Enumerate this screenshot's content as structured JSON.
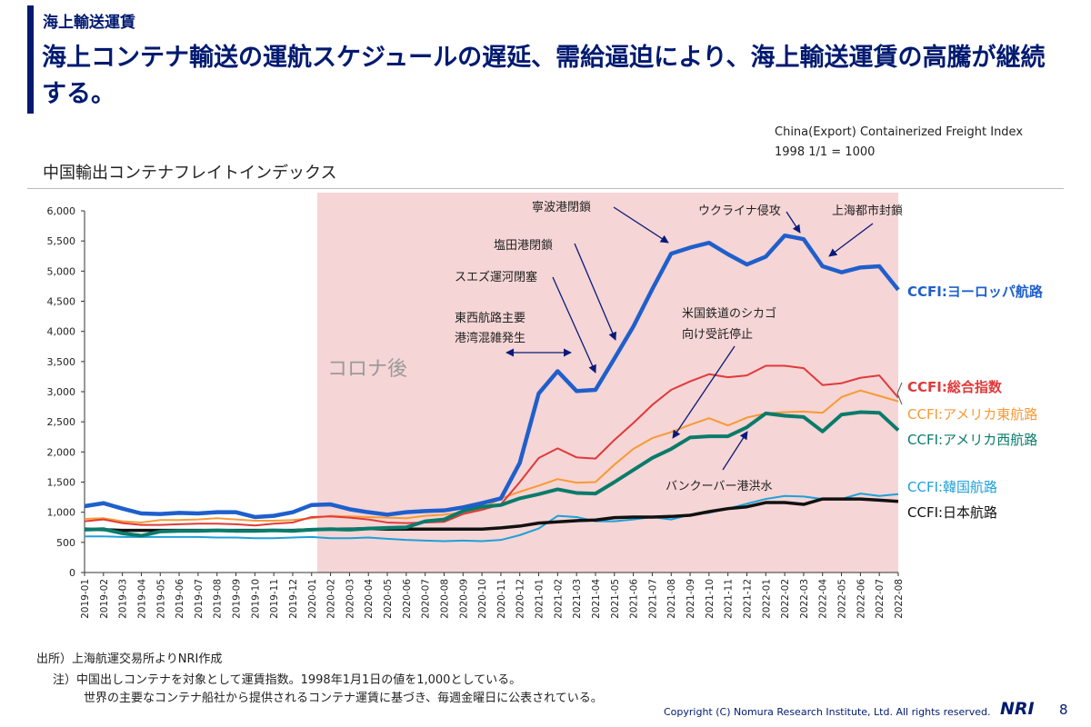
{
  "header": {
    "section": "海上輸送運賃",
    "headline": "海上コンテナ輸送の運航スケジュールの遅延、需給逼迫により、海上輸送運賃の高騰が継続する。",
    "source_line1": "China(Export) Containerized Freight Index",
    "source_line2": "1998 1/1 = 1000"
  },
  "chart_data": {
    "type": "line",
    "title": "中国輸出コンテナフレイトインデックス",
    "xlabel": "",
    "ylabel": "",
    "ylim": [
      0,
      6000
    ],
    "yticks": [
      "0",
      "500",
      "1,000",
      "1,500",
      "2,000",
      "2,500",
      "3,000",
      "3,500",
      "4,000",
      "4,500",
      "5,000",
      "5,500",
      "6,000"
    ],
    "grid": false,
    "legend": "right (inline labels at line ends)",
    "x": [
      "2019-01",
      "2019-02",
      "2019-03",
      "2019-04",
      "2019-05",
      "2019-06",
      "2019-07",
      "2019-08",
      "2019-09",
      "2019-10",
      "2019-11",
      "2019-12",
      "2020-01",
      "2020-02",
      "2020-03",
      "2020-04",
      "2020-05",
      "2020-06",
      "2020-07",
      "2020-08",
      "2020-09",
      "2020-10",
      "2020-11",
      "2020-12",
      "2021-01",
      "2021-02",
      "2021-03",
      "2021-04",
      "2021-05",
      "2021-06",
      "2021-07",
      "2021-08",
      "2021-09",
      "2021-10",
      "2021-11",
      "2021-12",
      "2022-01",
      "2022-02",
      "2022-03",
      "2022-04",
      "2022-05",
      "2022-06",
      "2022-07",
      "2022-08"
    ],
    "shaded_region": {
      "label": "コロナ後",
      "from": "2020-01",
      "to": "2022-08",
      "color": "#f5d5d5"
    },
    "series": [
      {
        "name": "CCFI:ヨーロッパ航路",
        "color": "#1f5fcc",
        "width": 4.5,
        "bold": true,
        "values": [
          1100,
          1150,
          1060,
          980,
          970,
          990,
          980,
          1000,
          1000,
          920,
          940,
          1000,
          1120,
          1130,
          1050,
          1000,
          960,
          1000,
          1020,
          1030,
          1080,
          1150,
          1230,
          1820,
          2970,
          3340,
          3010,
          3030,
          3550,
          4080,
          4700,
          5290,
          5390,
          5470,
          5280,
          5110,
          5240,
          5590,
          5530,
          5080,
          4980,
          5060,
          5080,
          4690
        ]
      },
      {
        "name": "CCFI:総合指数",
        "color": "#e03a3a",
        "width": 2,
        "bold": true,
        "values": [
          850,
          880,
          820,
          790,
          790,
          800,
          810,
          810,
          800,
          780,
          810,
          830,
          920,
          930,
          910,
          880,
          830,
          820,
          830,
          840,
          970,
          1040,
          1130,
          1500,
          1900,
          2060,
          1910,
          1890,
          2200,
          2480,
          2780,
          3030,
          3170,
          3290,
          3240,
          3270,
          3430,
          3430,
          3390,
          3110,
          3140,
          3230,
          3270,
          2900
        ]
      },
      {
        "name": "CCFI:アメリカ東航路",
        "color": "#f79a34",
        "width": 2,
        "bold": false,
        "values": [
          890,
          900,
          850,
          830,
          870,
          870,
          880,
          900,
          880,
          860,
          860,
          870,
          900,
          940,
          930,
          920,
          910,
          900,
          940,
          960,
          1000,
          1060,
          1230,
          1340,
          1440,
          1550,
          1490,
          1500,
          1790,
          2050,
          2230,
          2330,
          2450,
          2560,
          2440,
          2570,
          2640,
          2660,
          2670,
          2650,
          2910,
          3020,
          2930,
          2840
        ]
      },
      {
        "name": "CCFI:アメリカ西航路",
        "color": "#0a7b6b",
        "width": 4,
        "bold": false,
        "values": [
          710,
          720,
          650,
          610,
          680,
          690,
          690,
          700,
          690,
          690,
          700,
          690,
          710,
          720,
          710,
          730,
          740,
          750,
          850,
          880,
          1020,
          1090,
          1120,
          1230,
          1300,
          1380,
          1320,
          1310,
          1500,
          1700,
          1900,
          2050,
          2240,
          2260,
          2260,
          2410,
          2640,
          2600,
          2580,
          2340,
          2620,
          2660,
          2650,
          2360
        ]
      },
      {
        "name": "CCFI:韓国航路",
        "color": "#1ea0d8",
        "width": 2,
        "bold": false,
        "values": [
          600,
          600,
          590,
          590,
          590,
          590,
          590,
          580,
          580,
          570,
          570,
          580,
          590,
          570,
          570,
          580,
          560,
          540,
          530,
          520,
          530,
          520,
          540,
          620,
          730,
          940,
          920,
          850,
          850,
          880,
          920,
          880,
          960,
          990,
          1060,
          1140,
          1220,
          1270,
          1260,
          1220,
          1220,
          1310,
          1270,
          1300
        ]
      },
      {
        "name": "CCFI:日本航路",
        "color": "#111111",
        "width": 3.5,
        "bold": false,
        "values": [
          720,
          710,
          700,
          700,
          700,
          700,
          700,
          700,
          700,
          700,
          700,
          700,
          710,
          720,
          720,
          730,
          720,
          720,
          720,
          720,
          720,
          720,
          740,
          770,
          820,
          840,
          860,
          870,
          910,
          920,
          920,
          930,
          950,
          1010,
          1060,
          1090,
          1160,
          1160,
          1130,
          1220,
          1220,
          1220,
          1200,
          1180
        ]
      }
    ],
    "annotations": [
      {
        "id": "ningbo",
        "text": [
          "寧波港閉鎖"
        ]
      },
      {
        "id": "ukraine",
        "text": [
          "ウクライナ侵攻"
        ]
      },
      {
        "id": "shanghai",
        "text": [
          "上海都市封鎖"
        ]
      },
      {
        "id": "yantian",
        "text": [
          "塩田港閉鎖"
        ]
      },
      {
        "id": "suez",
        "text": [
          "スエズ運河閉塞"
        ]
      },
      {
        "id": "congestion",
        "text": [
          "東西航路主要",
          "港湾混雑発生"
        ]
      },
      {
        "id": "rail",
        "text": [
          "米国鉄道のシカゴ",
          "向け受託停止"
        ]
      },
      {
        "id": "vancouver",
        "text": [
          "バンクーバー港洪水"
        ]
      }
    ]
  },
  "footer": {
    "source": "出所）上海航運交易所よりNRI作成",
    "note1": "注）中国出しコンテナを対象として運賃指数。1998年1月1日の値を1,000としている。",
    "note2": "世界の主要なコンテナ船社から提供されるコンテナ運賃に基づき、毎週金曜日に公表されている。",
    "copyright": "Copyright (C)  Nomura Research Institute, Ltd. All rights reserved.",
    "logo": "NRI",
    "page": "8"
  }
}
